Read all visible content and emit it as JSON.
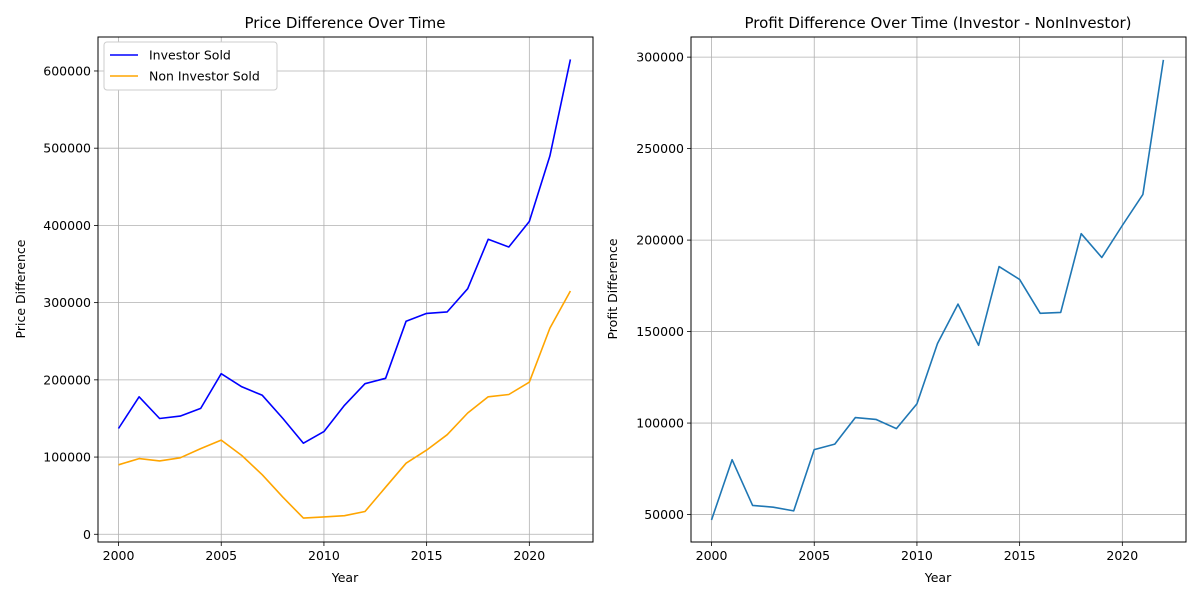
{
  "chart_data": [
    {
      "type": "line",
      "title": "Price Difference Over Time",
      "xlabel": "Year",
      "ylabel": "Price Difference",
      "xlim": [
        1999,
        2023.1
      ],
      "ylim": [
        -10000,
        644000
      ],
      "grid": true,
      "legend_position": "top-left",
      "x_ticks": [
        2000,
        2005,
        2010,
        2015,
        2020
      ],
      "y_ticks": [
        0,
        100000,
        200000,
        300000,
        400000,
        500000,
        600000
      ],
      "x": [
        2000,
        2001,
        2002,
        2003,
        2004,
        2005,
        2006,
        2007,
        2008,
        2009,
        2010,
        2011,
        2012,
        2013,
        2014,
        2015,
        2016,
        2017,
        2018,
        2019,
        2020,
        2021,
        2022
      ],
      "series": [
        {
          "name": "Investor Sold",
          "color": "#0000ff",
          "values": [
            137000,
            178000,
            150000,
            153000,
            163000,
            208000,
            191000,
            180000,
            150000,
            118000,
            133000,
            167000,
            195000,
            202000,
            276000,
            286000,
            288000,
            318000,
            382000,
            372000,
            405000,
            490000,
            615000
          ]
        },
        {
          "name": "Non Investor Sold",
          "color": "#ffa500",
          "values": [
            90000,
            98000,
            95000,
            99000,
            111000,
            122000,
            102000,
            77000,
            48000,
            21000,
            22500,
            24000,
            29500,
            61000,
            92000,
            109000,
            129000,
            157000,
            178000,
            181000,
            197000,
            267000,
            315000
          ]
        }
      ]
    },
    {
      "type": "line",
      "title": "Profit Difference Over Time (Investor - NonInvestor)",
      "xlabel": "Year",
      "ylabel": "Profit Difference",
      "xlim": [
        1999,
        2023.1
      ],
      "ylim": [
        35000,
        311000
      ],
      "grid": true,
      "x_ticks": [
        2000,
        2005,
        2010,
        2015,
        2020
      ],
      "y_ticks": [
        50000,
        100000,
        150000,
        200000,
        250000,
        300000
      ],
      "x": [
        2000,
        2001,
        2002,
        2003,
        2004,
        2005,
        2006,
        2007,
        2008,
        2009,
        2010,
        2011,
        2012,
        2013,
        2014,
        2015,
        2016,
        2017,
        2018,
        2019,
        2020,
        2021,
        2022
      ],
      "series": [
        {
          "color": "#1f77b4",
          "values": [
            47000,
            80000,
            55000,
            54000,
            52000,
            85500,
            88500,
            103000,
            102000,
            97000,
            110500,
            143500,
            165000,
            142500,
            185500,
            178500,
            160000,
            160500,
            203500,
            190500,
            208000,
            225000,
            298500
          ]
        }
      ]
    }
  ]
}
